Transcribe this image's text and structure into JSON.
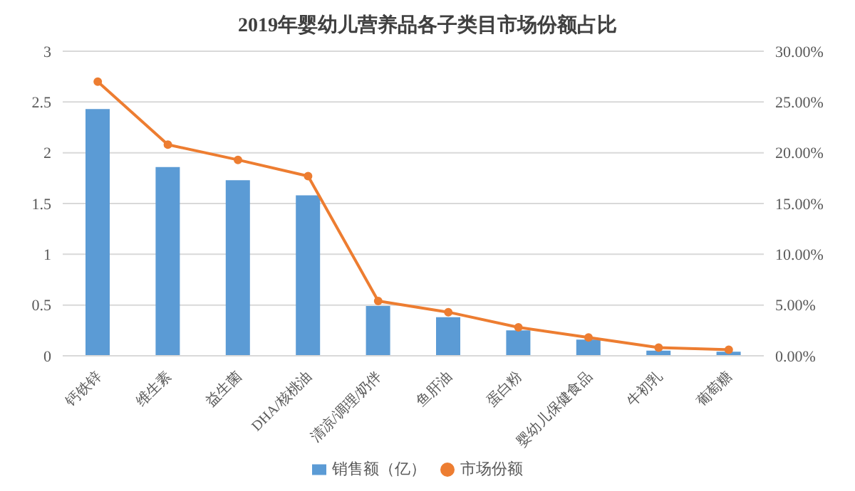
{
  "chart_data": {
    "type": "bar",
    "title": "2019年婴幼儿营养品各子类目市场份额占比",
    "categories": [
      "钙铁锌",
      "维生素",
      "益生菌",
      "DHA/核桃油",
      "清凉/调理/奶伴",
      "鱼肝油",
      "蛋白粉",
      "婴幼儿保健食品",
      "牛初乳",
      "葡萄糖"
    ],
    "series": [
      {
        "name": "销售额（亿）",
        "color": "#5b9bd5",
        "values": [
          2.43,
          1.86,
          1.73,
          1.58,
          0.49,
          0.38,
          0.25,
          0.16,
          0.05,
          0.04
        ]
      },
      {
        "name": "市场份额",
        "type": "line",
        "axis": "y2",
        "color": "#ed7d31",
        "marker": "circle",
        "values": [
          27.0,
          20.8,
          19.3,
          17.7,
          5.4,
          4.3,
          2.8,
          1.8,
          0.8,
          0.6
        ]
      }
    ],
    "ylim": [
      0,
      3
    ],
    "yticks": [
      0,
      0.5,
      1,
      1.5,
      2,
      2.5,
      3
    ],
    "y2lim": [
      0,
      30
    ],
    "y2ticks": [
      {
        "value": 0,
        "label": "0.00%"
      },
      {
        "value": 5,
        "label": "5.00%"
      },
      {
        "value": 10,
        "label": "10.00%"
      },
      {
        "value": 15,
        "label": "15.00%"
      },
      {
        "value": 20,
        "label": "20.00%"
      },
      {
        "value": 25,
        "label": "25.00%"
      },
      {
        "value": 30,
        "label": "30.00%"
      }
    ],
    "grid": "y",
    "legend": "bottom"
  }
}
